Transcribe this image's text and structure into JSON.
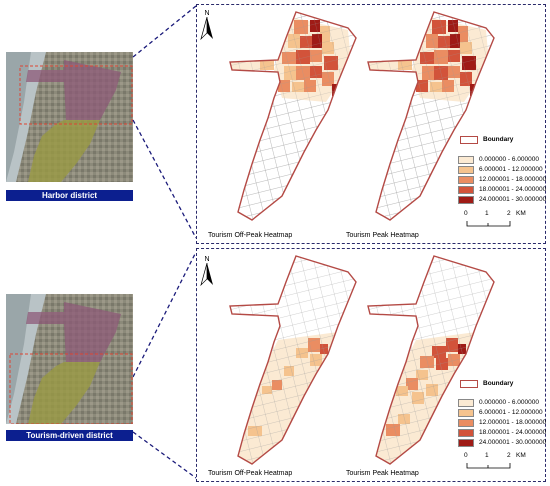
{
  "districts": {
    "harbor_label": "Harbor district",
    "tourism_label": "Tourism-driven district"
  },
  "maps": {
    "offpeak_label": "Tourism Off-Peak Heatmap",
    "peak_label": "Tourism Peak Heatmap",
    "north": "N"
  },
  "legend": {
    "boundary": "Boundary",
    "classes": [
      {
        "label": "0.000000 - 6.000000",
        "color": "#fbead3"
      },
      {
        "label": "6.000001 - 12.000000",
        "color": "#f5c38e"
      },
      {
        "label": "12.000001 - 18.000000",
        "color": "#ea8d62"
      },
      {
        "label": "18.000001 - 24.000000",
        "color": "#d2533a"
      },
      {
        "label": "24.000001 - 30.000000",
        "color": "#9f1b16"
      }
    ],
    "boundary_color": "#b44a45"
  },
  "scalebar": {
    "ticks": [
      "0",
      "1",
      "2"
    ],
    "unit": "KM"
  },
  "colors": {
    "connector": "#1a1a7a",
    "district_bar": "#0c1f8f"
  }
}
